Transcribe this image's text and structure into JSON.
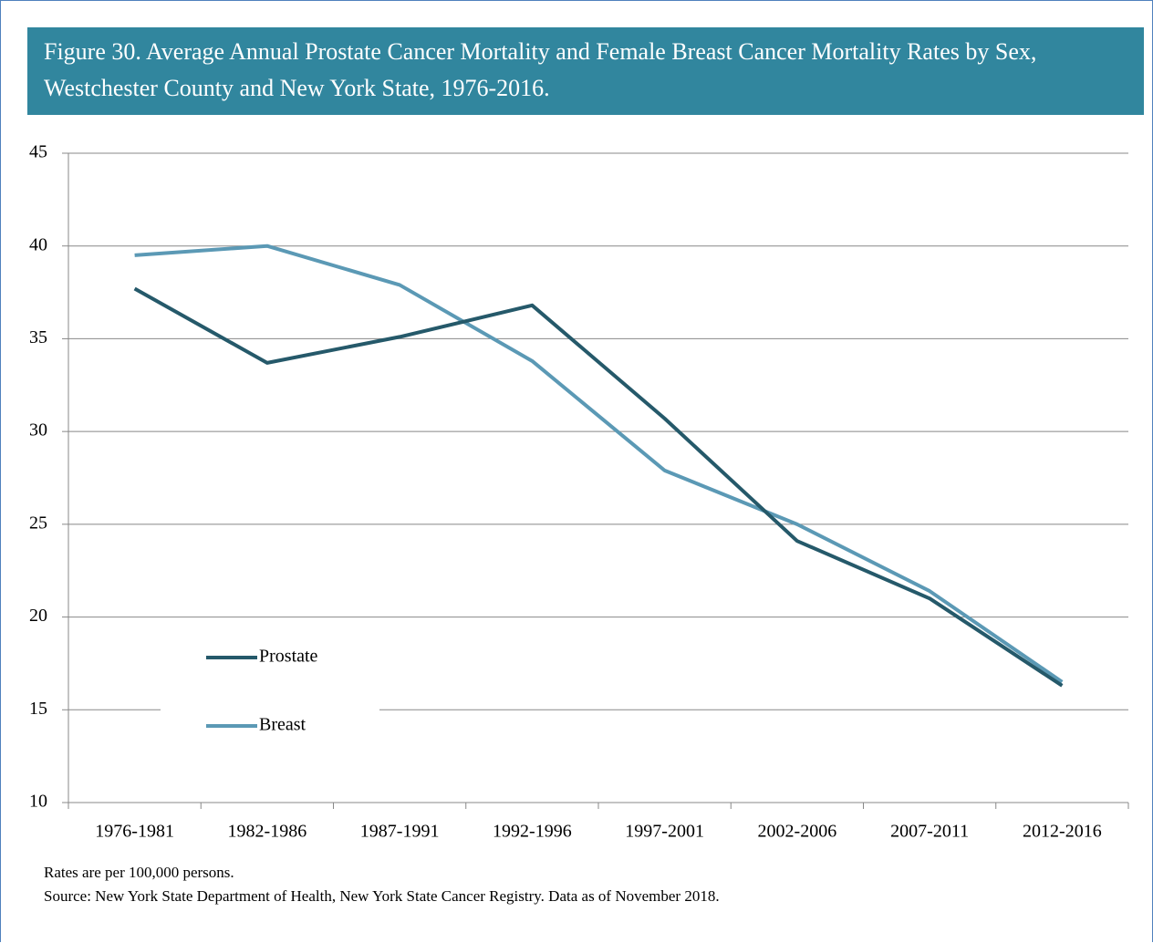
{
  "chart_data": {
    "type": "line",
    "title": "Figure 30.  Average Annual Prostate Cancer Mortality and Female Breast Cancer Mortality Rates by Sex, Westchester County and New York State, 1976-2016.",
    "categories": [
      "1976-1981",
      "1982-1986",
      "1987-1991",
      "1992-1996",
      "1997-2001",
      "2002-2006",
      "2007-2011",
      "2012-2016"
    ],
    "series": [
      {
        "name": "Prostate",
        "color": "#25596a",
        "values": [
          37.7,
          33.7,
          35.1,
          36.8,
          30.7,
          24.1,
          21.0,
          16.3
        ]
      },
      {
        "name": "Breast",
        "color": "#5b99b5",
        "values": [
          39.5,
          40.0,
          37.9,
          33.8,
          27.9,
          25.0,
          21.4,
          16.5
        ]
      }
    ],
    "ylim": [
      10,
      45
    ],
    "yticks": [
      10,
      15,
      20,
      25,
      30,
      35,
      40,
      45
    ],
    "grid": true,
    "legend": "bottom-left",
    "notes": [
      "Rates are per 100,000 persons.",
      "Source:  New York State Department of Health, New York State Cancer Registry.  Data as of November 2018."
    ]
  }
}
